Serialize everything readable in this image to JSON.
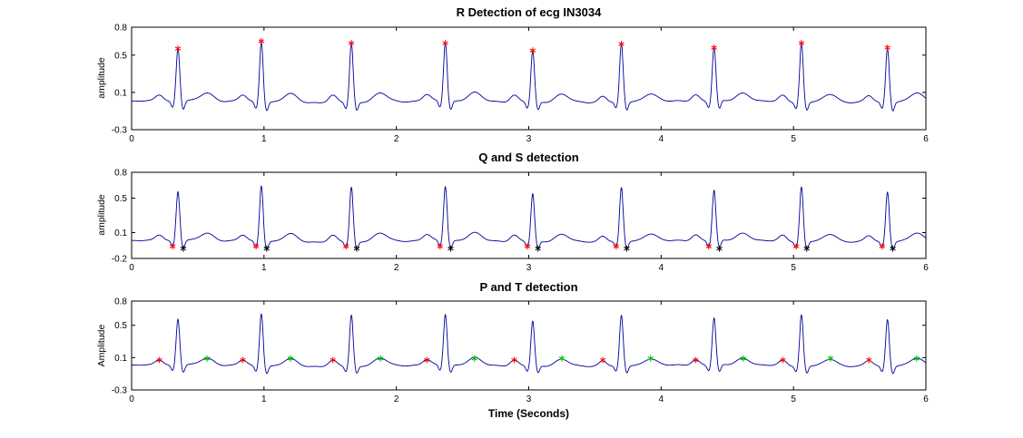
{
  "figure": {
    "background": "#ffffff",
    "description": "MATLAB-style figure: ECG feature detection in three stacked subplots"
  },
  "chart_data": {
    "type": "line",
    "x": {
      "label": "Time (Seconds)",
      "lim": [
        0,
        6
      ],
      "ticks": [
        0,
        1,
        2,
        3,
        4,
        5,
        6
      ]
    },
    "line_color": "#000099",
    "beats_sec": [
      0.35,
      0.98,
      1.66,
      2.37,
      3.03,
      3.7,
      4.4,
      5.06,
      5.71
    ],
    "r_amplitudes": [
      0.57,
      0.65,
      0.63,
      0.63,
      0.55,
      0.62,
      0.58,
      0.63,
      0.58
    ],
    "waveform": {
      "qrs_width": 0.013,
      "q": {
        "offset": -0.04,
        "depth": -0.07,
        "width": 0.012
      },
      "s": {
        "offset": 0.04,
        "depth": -0.09,
        "width": 0.012
      },
      "p": {
        "offset": -0.14,
        "amp": 0.07,
        "width": 0.03
      },
      "t": {
        "offset": 0.22,
        "amp": 0.09,
        "width": 0.05
      }
    },
    "subplots": [
      {
        "title": "R Detection of ecg IN3034",
        "ylabel": "amplitude",
        "ylim": [
          -0.3,
          0.8
        ],
        "yticks": [
          0.8,
          0.5,
          0.1,
          -0.3
        ],
        "markers": [
          {
            "name": "R peaks",
            "symbol": "*",
            "color": "#ff0000",
            "t": [
              0.35,
              0.98,
              1.66,
              2.37,
              3.03,
              3.7,
              4.4,
              5.06,
              5.71
            ],
            "v": [
              0.57,
              0.65,
              0.63,
              0.63,
              0.55,
              0.62,
              0.58,
              0.63,
              0.58
            ]
          }
        ]
      },
      {
        "title": "Q and S detection",
        "ylabel": "amplitude",
        "ylim": [
          -0.2,
          0.8
        ],
        "yticks": [
          0.8,
          0.5,
          0.1,
          -0.2
        ],
        "markers": [
          {
            "name": "Q points",
            "symbol": "*",
            "color": "#ff0000",
            "t": [
              0.31,
              0.94,
              1.62,
              2.33,
              2.99,
              3.66,
              4.36,
              5.02,
              5.67
            ],
            "v": [
              -0.06,
              -0.06,
              -0.06,
              -0.06,
              -0.06,
              -0.06,
              -0.06,
              -0.06,
              -0.06
            ]
          },
          {
            "name": "S points",
            "symbol": "*",
            "color": "#000000",
            "t": [
              0.39,
              1.02,
              1.7,
              2.41,
              3.07,
              3.74,
              4.44,
              5.1,
              5.75
            ],
            "v": [
              -0.085,
              -0.085,
              -0.085,
              -0.085,
              -0.085,
              -0.085,
              -0.085,
              -0.085,
              -0.085
            ]
          }
        ]
      },
      {
        "title": "P and T detection",
        "ylabel": "Amplitude",
        "ylim": [
          -0.3,
          0.8
        ],
        "yticks": [
          0.8,
          0.5,
          0.1,
          -0.3
        ],
        "xlabel": "Time (Seconds)",
        "markers": [
          {
            "name": "P waves",
            "symbol": "*",
            "color": "#ff0000",
            "t": [
              0.21,
              0.84,
              1.52,
              2.23,
              2.89,
              3.56,
              4.26,
              4.92,
              5.57
            ],
            "v": [
              0.07,
              0.07,
              0.07,
              0.07,
              0.07,
              0.07,
              0.07,
              0.07,
              0.07
            ]
          },
          {
            "name": "T waves",
            "symbol": "*",
            "color": "#00bb00",
            "t": [
              0.57,
              1.2,
              1.88,
              2.59,
              3.25,
              3.92,
              4.62,
              5.28,
              5.93
            ],
            "v": [
              0.09,
              0.09,
              0.09,
              0.09,
              0.09,
              0.09,
              0.09,
              0.09,
              0.09
            ]
          }
        ]
      }
    ]
  }
}
